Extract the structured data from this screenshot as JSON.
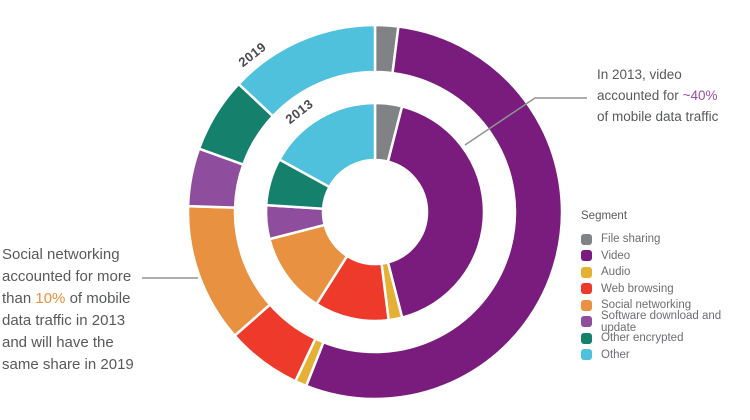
{
  "chart_data": {
    "type": "donut-nested",
    "categories": [
      "File sharing",
      "Video",
      "Audio",
      "Web browsing",
      "Social networking",
      "Software download and update",
      "Other encrypted",
      "Other"
    ],
    "colors": [
      "#808285",
      "#7A1C7D",
      "#E5B036",
      "#EE3A2A",
      "#E89140",
      "#8F4E9D",
      "#15806B",
      "#4FC1DC"
    ],
    "series": [
      {
        "name": "2013",
        "ring": "inner",
        "values": [
          4,
          42,
          2,
          11,
          12,
          5,
          7,
          17
        ]
      },
      {
        "name": "2019",
        "ring": "outer",
        "values": [
          2,
          54,
          1,
          6.5,
          12,
          5,
          6.5,
          13
        ]
      }
    ],
    "units": "percent of mobile data traffic",
    "start_angle_deg": 0,
    "direction": "clockwise",
    "legend_position": "right"
  },
  "legend": {
    "title": "Segment"
  },
  "annotations": [
    {
      "id": "video",
      "lines": [
        "In 2013, video",
        "accounted for ~40%",
        "of mobile data traffic"
      ],
      "highlight": "~40%",
      "highlight_color": "#9B4F9F"
    },
    {
      "id": "social",
      "lines": [
        "Social networking",
        "accounted for more",
        "than 10% of mobile",
        "data traffic in 2013",
        "and will have the",
        "same share in 2019"
      ],
      "highlight": "10%",
      "highlight_color": "#E8913B"
    }
  ]
}
